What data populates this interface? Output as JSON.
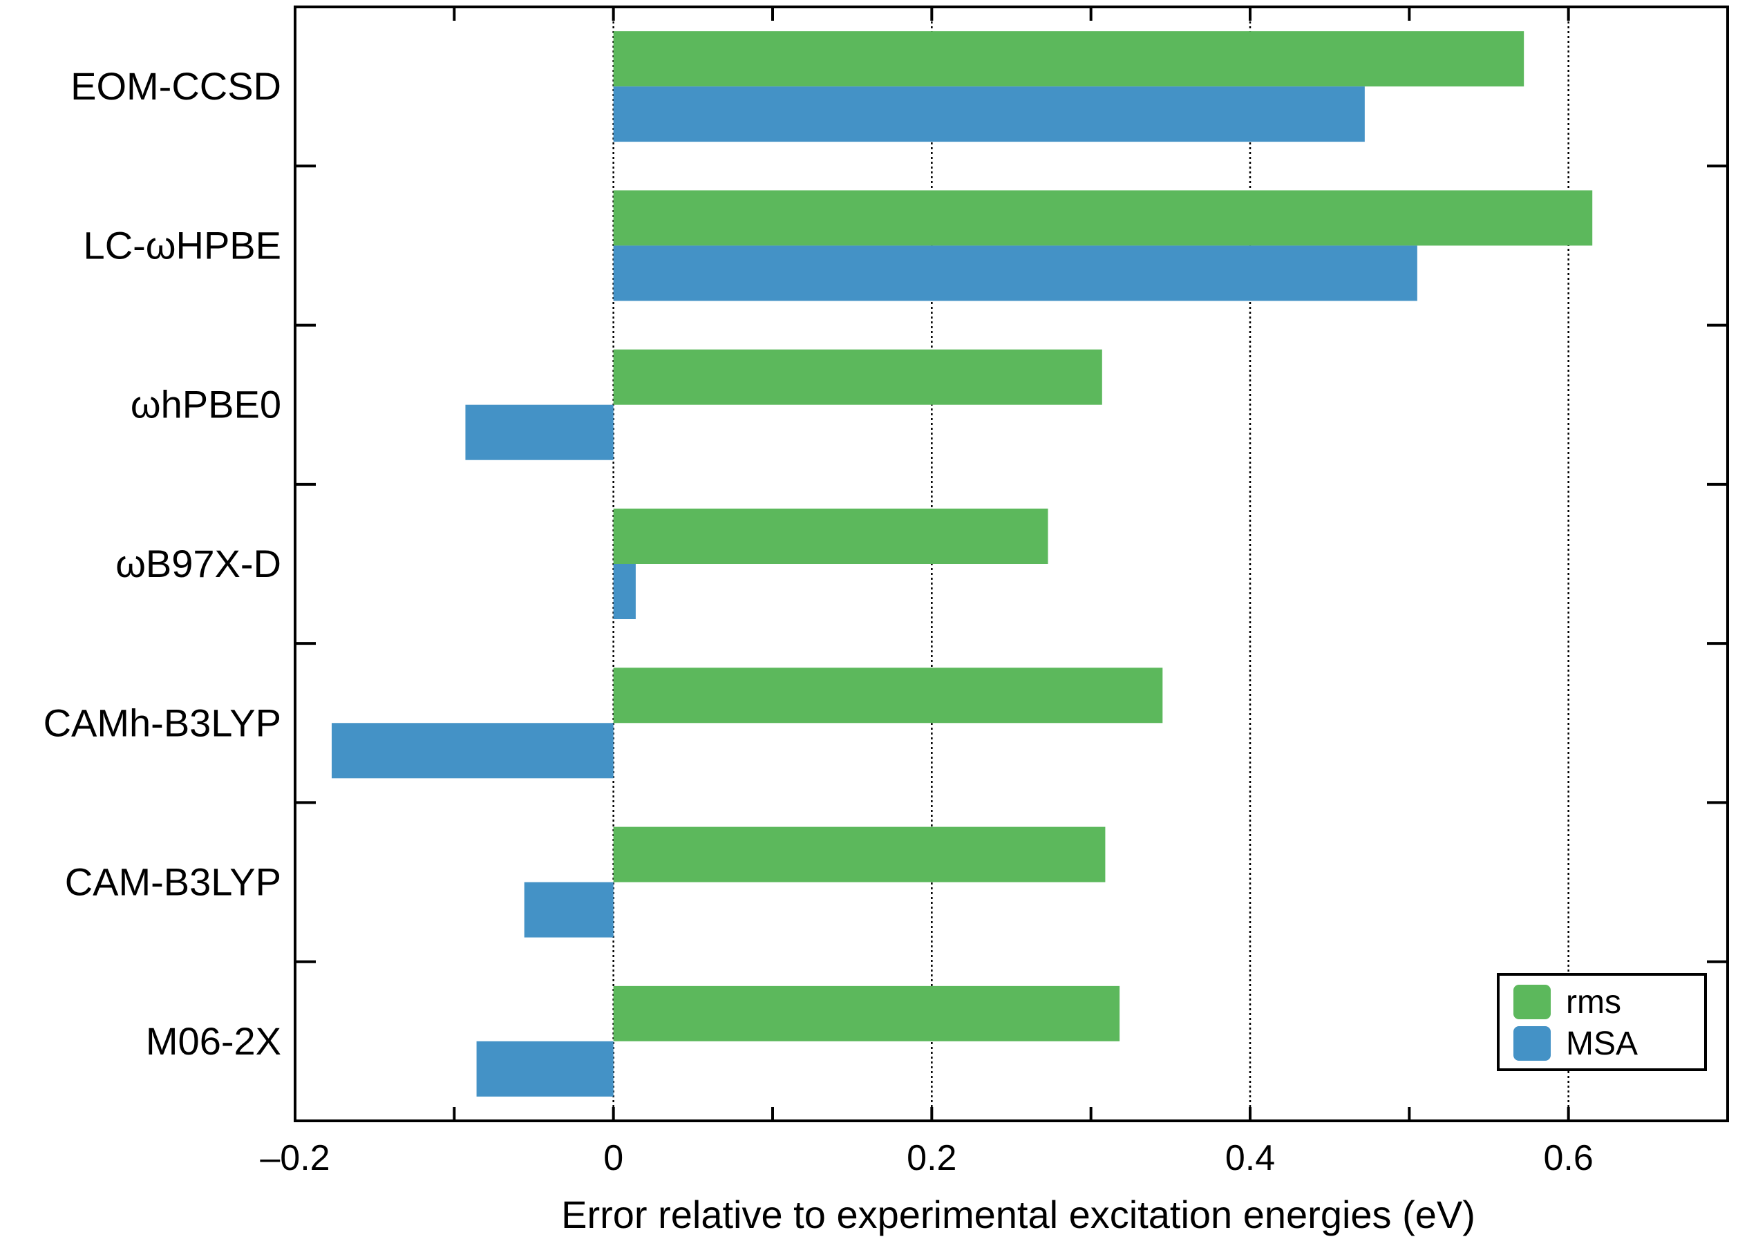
{
  "chart_data": {
    "type": "bar",
    "orientation": "horizontal",
    "categories": [
      "EOM-CCSD",
      "LC-ωHPBE",
      "ωhPBE0",
      "ωB97X-D",
      "CAMh-B3LYP",
      "CAM-B3LYP",
      "M06-2X"
    ],
    "series": [
      {
        "name": "rms",
        "color": "#5cb85c",
        "values": [
          0.572,
          0.615,
          0.307,
          0.273,
          0.345,
          0.309,
          0.318
        ]
      },
      {
        "name": "MSA",
        "color": "#4492c6",
        "values": [
          0.472,
          0.505,
          -0.093,
          0.014,
          -0.177,
          -0.056,
          -0.086
        ]
      }
    ],
    "xlabel": "Error relative to experimental excitation energies (eV)",
    "ylabel": "",
    "xlim": [
      -0.2,
      0.7
    ],
    "xticks": [
      -0.2,
      0,
      0.2,
      0.4,
      0.6
    ],
    "xtick_labels": [
      "–0.2",
      "0",
      "0.2",
      "0.4",
      "0.6"
    ],
    "gridlines": [
      0,
      0.2,
      0.4,
      0.6
    ],
    "legend_position": "bottom-right"
  }
}
